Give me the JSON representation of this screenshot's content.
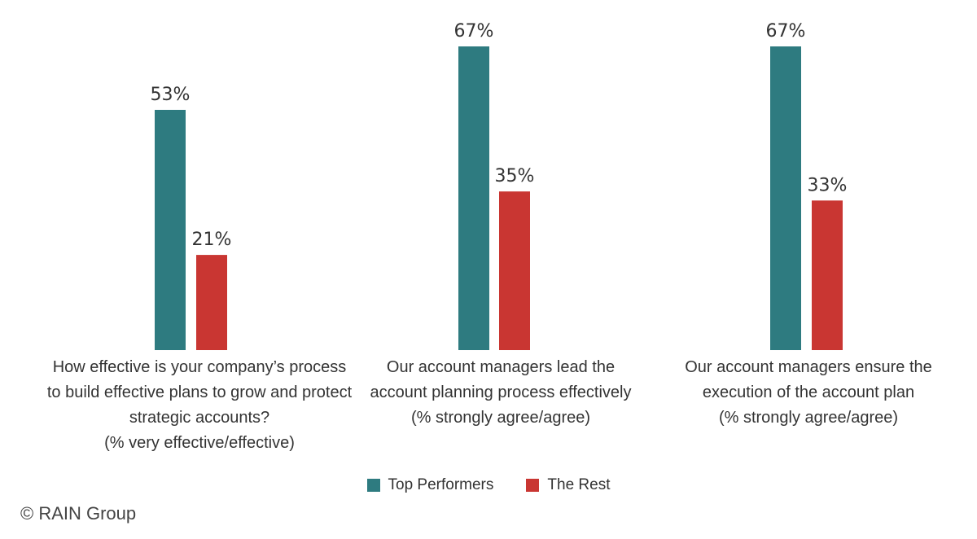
{
  "chart_data": {
    "type": "bar",
    "categories": [
      "How effective is your company’s process to build effective plans to grow and protect strategic accounts?",
      "Our account managers lead the account planning process effectively",
      "Our account managers ensure the execution of the account plan"
    ],
    "category_notes": [
      "(% very effective/effective)",
      "(% strongly agree/agree)",
      "(% strongly agree/agree)"
    ],
    "series": [
      {
        "name": "Top Performers",
        "color": "#2e7b80",
        "values": [
          53,
          67,
          67
        ],
        "value_labels": [
          "53%",
          "67%",
          "67%"
        ]
      },
      {
        "name": "The Rest",
        "color": "#c93632",
        "values": [
          21,
          35,
          33
        ],
        "value_labels": [
          "21%",
          "35%",
          "33%"
        ]
      }
    ],
    "source": "© RAIN Group"
  }
}
